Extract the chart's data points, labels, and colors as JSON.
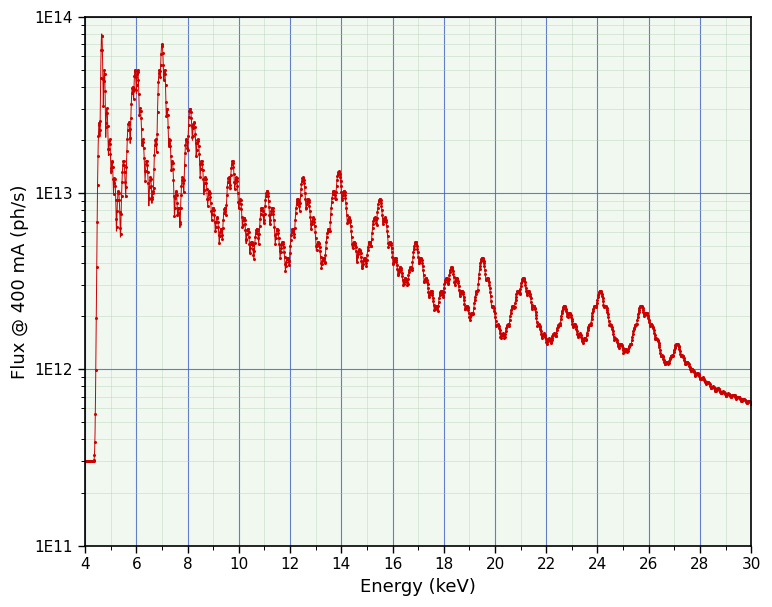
{
  "xlabel": "Energy (keV)",
  "ylabel": "Flux @ 400 mA (ph/s)",
  "xlim": [
    4,
    30
  ],
  "ylim": [
    100000000000.0,
    100000000000000.0
  ],
  "xticks": [
    4,
    6,
    8,
    10,
    12,
    14,
    16,
    18,
    20,
    22,
    24,
    26,
    28,
    30
  ],
  "curve_color": "#cc0000",
  "bg_color": "#f0f8f0",
  "grid_color_minor": "#a8c8a8",
  "grid_color_major": "#4060c0",
  "figsize": [
    7.72,
    6.07
  ],
  "dpi": 100
}
